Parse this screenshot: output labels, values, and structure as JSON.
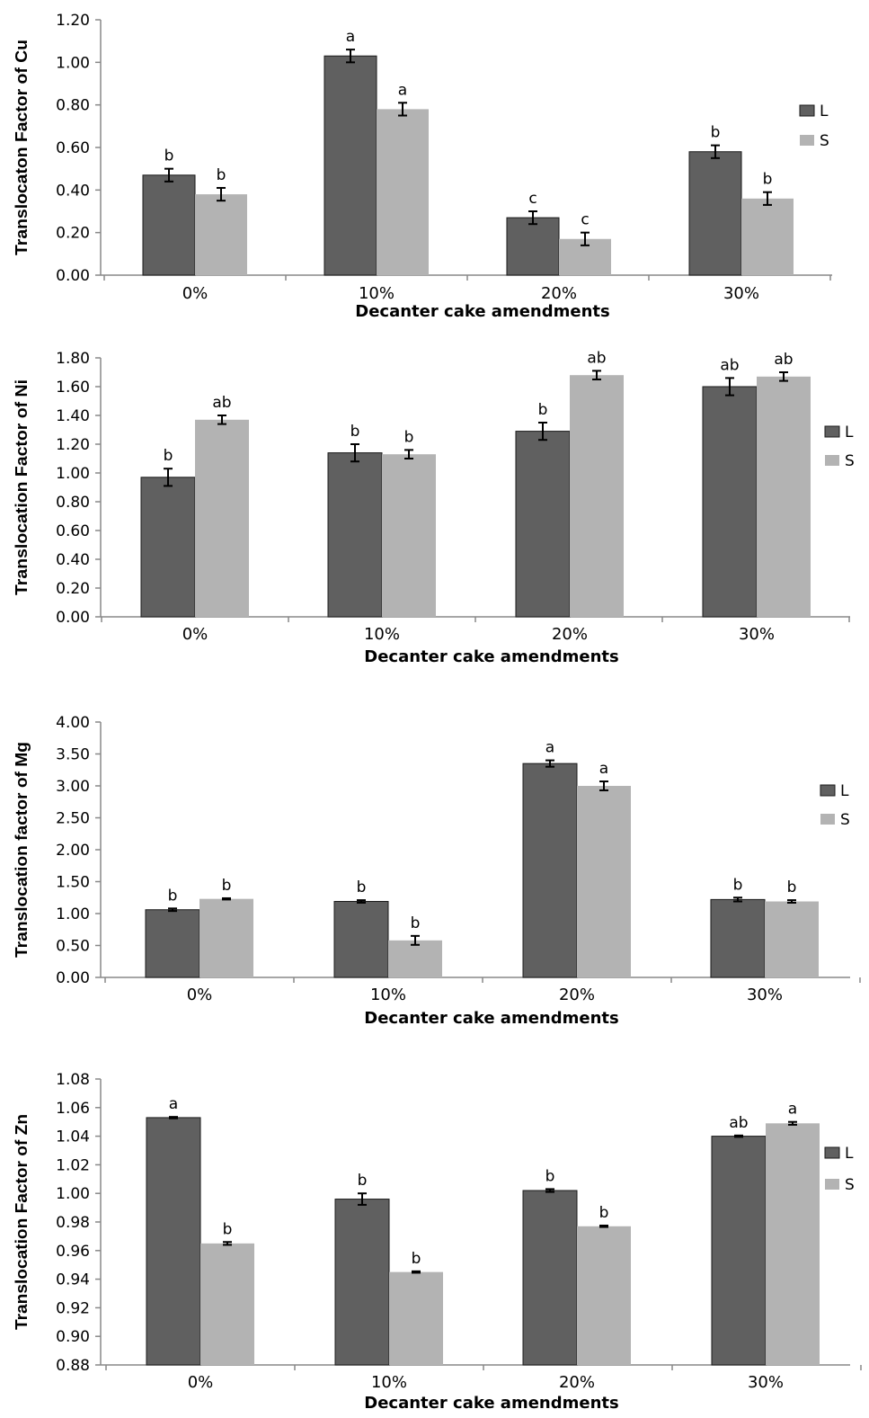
{
  "colors": {
    "L": "#606060",
    "S": "#b3b3b3",
    "axis": "#888888",
    "error": "#000000"
  },
  "chart_data": [
    {
      "type": "bar",
      "ylabel": "Translocaton Factor of Cu",
      "xlabel": "Decanter cake amendments",
      "categories": [
        "0%",
        "10%",
        "20%",
        "30%"
      ],
      "ylim": [
        0,
        1.2
      ],
      "yticks": [
        "0.00",
        "0.20",
        "0.40",
        "0.60",
        "0.80",
        "1.00",
        "1.20"
      ],
      "grid": false,
      "legend_position": "right",
      "series": [
        {
          "name": "L",
          "values": [
            0.47,
            1.03,
            0.27,
            0.58
          ],
          "errors": [
            0.03,
            0.03,
            0.03,
            0.03
          ],
          "letters": [
            "b",
            "a",
            "c",
            "b"
          ]
        },
        {
          "name": "S",
          "values": [
            0.38,
            0.78,
            0.17,
            0.36
          ],
          "errors": [
            0.03,
            0.03,
            0.03,
            0.03
          ],
          "letters": [
            "b",
            "a",
            "c",
            "b"
          ]
        }
      ]
    },
    {
      "type": "bar",
      "ylabel": "Translocation Factor of Ni",
      "xlabel": "Decanter cake amendments",
      "categories": [
        "0%",
        "10%",
        "20%",
        "30%"
      ],
      "ylim": [
        0,
        1.8
      ],
      "yticks": [
        "0.00",
        "0.20",
        "0.40",
        "0.60",
        "0.80",
        "1.00",
        "1.20",
        "1.40",
        "1.60",
        "1.80"
      ],
      "grid": false,
      "legend_position": "right",
      "series": [
        {
          "name": "L",
          "values": [
            0.97,
            1.14,
            1.29,
            1.6
          ],
          "errors": [
            0.06,
            0.06,
            0.06,
            0.06
          ],
          "letters": [
            "b",
            "b",
            "b",
            "ab"
          ]
        },
        {
          "name": "S",
          "values": [
            1.37,
            1.13,
            1.68,
            1.67
          ],
          "errors": [
            0.03,
            0.03,
            0.03,
            0.03
          ],
          "letters": [
            "ab",
            "b",
            "ab",
            "ab"
          ]
        }
      ]
    },
    {
      "type": "bar",
      "ylabel": "Translocation factor of Mg",
      "xlabel": "Decanter cake amendments",
      "categories": [
        "0%",
        "10%",
        "20%",
        "30%"
      ],
      "ylim": [
        0,
        4.0
      ],
      "yticks": [
        "0.00",
        "0.50",
        "1.00",
        "1.50",
        "2.00",
        "2.50",
        "3.00",
        "3.50",
        "4.00"
      ],
      "grid": false,
      "legend_position": "right",
      "series": [
        {
          "name": "L",
          "values": [
            1.06,
            1.19,
            3.35,
            1.22
          ],
          "errors": [
            0.02,
            0.02,
            0.05,
            0.03
          ],
          "letters": [
            "b",
            "b",
            "a",
            "b"
          ]
        },
        {
          "name": "S",
          "values": [
            1.23,
            0.58,
            3.0,
            1.19
          ],
          "errors": [
            0.01,
            0.07,
            0.07,
            0.02
          ],
          "letters": [
            "b",
            "b",
            "a",
            "b"
          ]
        }
      ]
    },
    {
      "type": "bar",
      "ylabel": "Translocation Factor of Zn",
      "xlabel": "Decanter cake amendments",
      "categories": [
        "0%",
        "10%",
        "20%",
        "30%"
      ],
      "ylim": [
        0.88,
        1.08
      ],
      "yticks": [
        "0.88",
        "0.90",
        "0.92",
        "0.94",
        "0.96",
        "0.98",
        "1.00",
        "1.02",
        "1.04",
        "1.06",
        "1.08"
      ],
      "grid": false,
      "legend_position": "right",
      "series": [
        {
          "name": "L",
          "values": [
            1.053,
            0.996,
            1.002,
            1.04
          ],
          "errors": [
            0.0005,
            0.004,
            0.001,
            0.0005
          ],
          "letters": [
            "a",
            "b",
            "b",
            "ab"
          ]
        },
        {
          "name": "S",
          "values": [
            0.965,
            0.945,
            0.977,
            1.049
          ],
          "errors": [
            0.001,
            0.0005,
            0.0005,
            0.001
          ],
          "letters": [
            "b",
            "b",
            "b",
            "a"
          ]
        }
      ]
    }
  ]
}
